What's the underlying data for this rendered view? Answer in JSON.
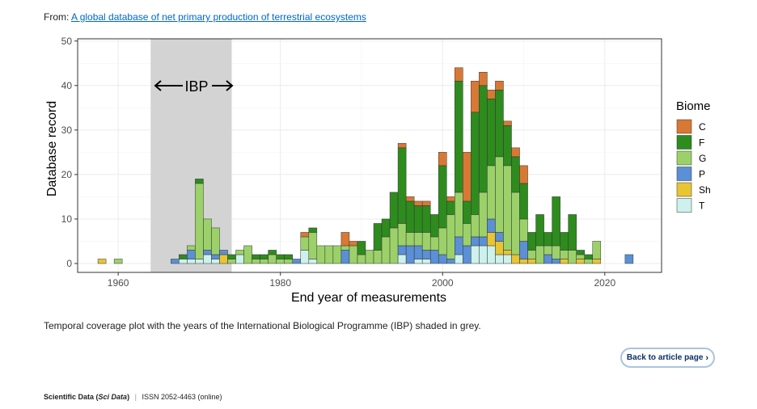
{
  "source": {
    "prefix": "From:",
    "link_text": "A global database of net primary production of terrestrial ecosystems"
  },
  "caption": "Temporal coverage plot with the years of the International Biological Programme (IBP) shaded in grey.",
  "back_button": {
    "label": "Back to article page",
    "icon": "chevron-right-icon"
  },
  "footer": {
    "journal": "Scientific Data",
    "abbrev_open": "(",
    "abbrev": "Sci Data",
    "abbrev_close": ")",
    "issn": "ISSN 2052-4463 (online)"
  },
  "chart_data": {
    "type": "bar",
    "stacked": true,
    "xlabel": "End year of measurements",
    "ylabel": "Database record",
    "xlim": [
      1955,
      2027
    ],
    "ylim": [
      -2,
      50.5
    ],
    "x_ticks": [
      1960,
      1980,
      2000,
      2020
    ],
    "y_ticks": [
      0,
      10,
      20,
      30,
      40,
      50
    ],
    "grid": true,
    "legend": {
      "title": "Biome",
      "position": "right"
    },
    "shaded_region": {
      "x": [
        1964,
        1974
      ],
      "label": "IBP",
      "color": "#d3d3d3"
    },
    "series": [
      {
        "name": "T",
        "color": "#cdf1ec",
        "values": {
          "1968": 1,
          "1969": 1,
          "1970": 1,
          "1971": 2,
          "1972": 1,
          "1975": 2,
          "1983": 3,
          "1984": 1,
          "1995": 2,
          "1997": 1,
          "1998": 1,
          "2002": 2,
          "2004": 4,
          "2005": 4,
          "2006": 4,
          "2007": 2,
          "2008": 2
        }
      },
      {
        "name": "Sh",
        "color": "#e8c531",
        "values": {
          "1958": 1,
          "1973": 2,
          "2006": 3,
          "2007": 3,
          "2008": 1,
          "2009": 2,
          "2010": 1,
          "2011": 1,
          "2015": 1,
          "2017": 1,
          "2019": 1
        }
      },
      {
        "name": "P",
        "color": "#5b8fd6",
        "values": {
          "1967": 1,
          "1969": 2,
          "1971": 1,
          "1972": 1,
          "1973": 1,
          "1982": 1,
          "1988": 3,
          "1995": 2,
          "1996": 4,
          "1997": 3,
          "1998": 2,
          "1999": 3,
          "2000": 2,
          "2001": 1,
          "2002": 4,
          "2003": 4,
          "2004": 2,
          "2005": 2,
          "2006": 3,
          "2007": 2,
          "2010": 4,
          "2013": 2,
          "2014": 1,
          "2023": 2
        }
      },
      {
        "name": "G",
        "color": "#9cd16a",
        "values": {
          "1960": 1,
          "1969": 1,
          "1970": 17,
          "1971": 7,
          "1972": 6,
          "1974": 1,
          "1975": 1,
          "1976": 4,
          "1977": 1,
          "1978": 1,
          "1979": 2,
          "1980": 1,
          "1981": 1,
          "1983": 3,
          "1984": 6,
          "1985": 4,
          "1986": 4,
          "1987": 4,
          "1988": 1,
          "1989": 4,
          "1990": 2,
          "1991": 3,
          "1992": 3,
          "1993": 6,
          "1994": 8,
          "1995": 5,
          "1996": 3,
          "1997": 3,
          "1998": 4,
          "1999": 3,
          "2000": 6,
          "2001": 10,
          "2002": 10,
          "2003": 5,
          "2004": 5,
          "2005": 10,
          "2006": 12,
          "2007": 17,
          "2008": 19,
          "2009": 14,
          "2010": 5,
          "2011": 2,
          "2012": 4,
          "2013": 2,
          "2014": 3,
          "2015": 2,
          "2016": 3,
          "2017": 1,
          "2018": 1,
          "2019": 4
        }
      },
      {
        "name": "F",
        "color": "#2e8b1e",
        "values": {
          "1968": 1,
          "1970": 1,
          "1974": 1,
          "1977": 1,
          "1978": 1,
          "1979": 1,
          "1980": 1,
          "1981": 1,
          "1984": 1,
          "1990": 3,
          "1992": 6,
          "1993": 4,
          "1994": 8,
          "1995": 17,
          "1996": 7,
          "1997": 6,
          "1998": 6,
          "1999": 5,
          "2000": 14,
          "2001": 3,
          "2002": 25,
          "2003": 5,
          "2004": 23,
          "2005": 24,
          "2006": 15,
          "2007": 15,
          "2008": 9,
          "2009": 8,
          "2010": 8,
          "2011": 4,
          "2012": 7,
          "2013": 3,
          "2014": 11,
          "2015": 4,
          "2016": 8,
          "2017": 1,
          "2018": 1
        }
      },
      {
        "name": "C",
        "color": "#d97834",
        "values": {
          "1983": 1,
          "1988": 3,
          "1989": 1,
          "1995": 1,
          "1996": 1,
          "1997": 1,
          "1998": 1,
          "2000": 3,
          "2001": 1,
          "2002": 3,
          "2003": 11,
          "2004": 7,
          "2005": 3,
          "2006": 2,
          "2007": 2,
          "2008": 1,
          "2009": 2,
          "2010": 4
        }
      }
    ]
  }
}
